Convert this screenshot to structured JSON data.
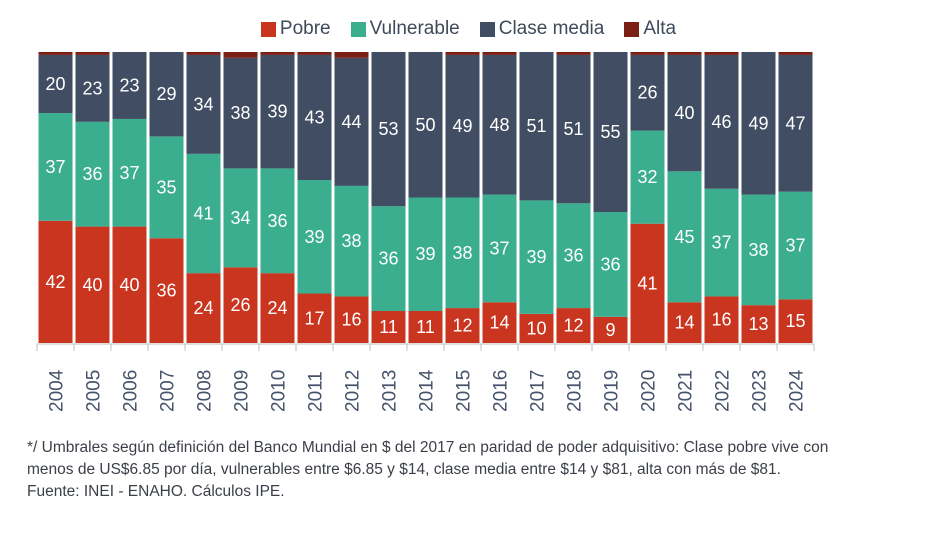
{
  "chart_data": {
    "type": "bar",
    "stacked": true,
    "normalized_percent": true,
    "title": "",
    "xlabel": "",
    "ylabel": "",
    "ylim": [
      0,
      100
    ],
    "grid": false,
    "legend_position": "top-center",
    "categories": [
      "2004",
      "2005",
      "2006",
      "2007",
      "2008",
      "2009",
      "2010",
      "2011",
      "2012",
      "2013",
      "2014",
      "2015",
      "2016",
      "2017",
      "2018",
      "2019",
      "2020",
      "2021",
      "2022",
      "2023",
      "2024"
    ],
    "series": [
      {
        "name": "Pobre",
        "color": "#c9351f",
        "values": [
          42,
          40,
          40,
          36,
          24,
          26,
          24,
          17,
          16,
          11,
          11,
          12,
          14,
          10,
          12,
          9,
          41,
          14,
          16,
          13,
          15
        ]
      },
      {
        "name": "Vulnerable",
        "color": "#3aae8f",
        "values": [
          37,
          36,
          37,
          35,
          41,
          34,
          36,
          39,
          38,
          36,
          39,
          38,
          37,
          39,
          36,
          36,
          32,
          45,
          37,
          38,
          37
        ]
      },
      {
        "name": "Clase media",
        "color": "#414d62",
        "values": [
          20,
          23,
          23,
          29,
          34,
          38,
          39,
          43,
          44,
          53,
          50,
          49,
          48,
          51,
          51,
          55,
          26,
          40,
          46,
          49,
          47
        ]
      },
      {
        "name": "Alta",
        "color": "#7b1f15",
        "values": [
          1,
          1,
          0,
          0,
          1,
          2,
          1,
          1,
          2,
          0,
          0,
          1,
          1,
          0,
          1,
          0,
          1,
          1,
          1,
          0,
          1
        ]
      }
    ],
    "data_labels_shown_for": [
      "Pobre",
      "Vulnerable",
      "Clase media"
    ]
  },
  "legend": [
    {
      "label": "Pobre",
      "color": "#c9351f"
    },
    {
      "label": "Vulnerable",
      "color": "#3aae8f"
    },
    {
      "label": "Clase media",
      "color": "#414d62"
    },
    {
      "label": "Alta",
      "color": "#7b1f15"
    }
  ],
  "footnote": {
    "line1": "*/ Umbrales según definición del Banco Mundial en $ del 2017 en paridad de poder adquisitivo: Clase pobre vive con",
    "line2": "menos de US$6.85 por día, vulnerables entre $6.85 y $14, clase media entre $14 y $81, alta con más de $81.",
    "line3": "Fuente: INEI - ENAHO. Cálculos IPE."
  }
}
